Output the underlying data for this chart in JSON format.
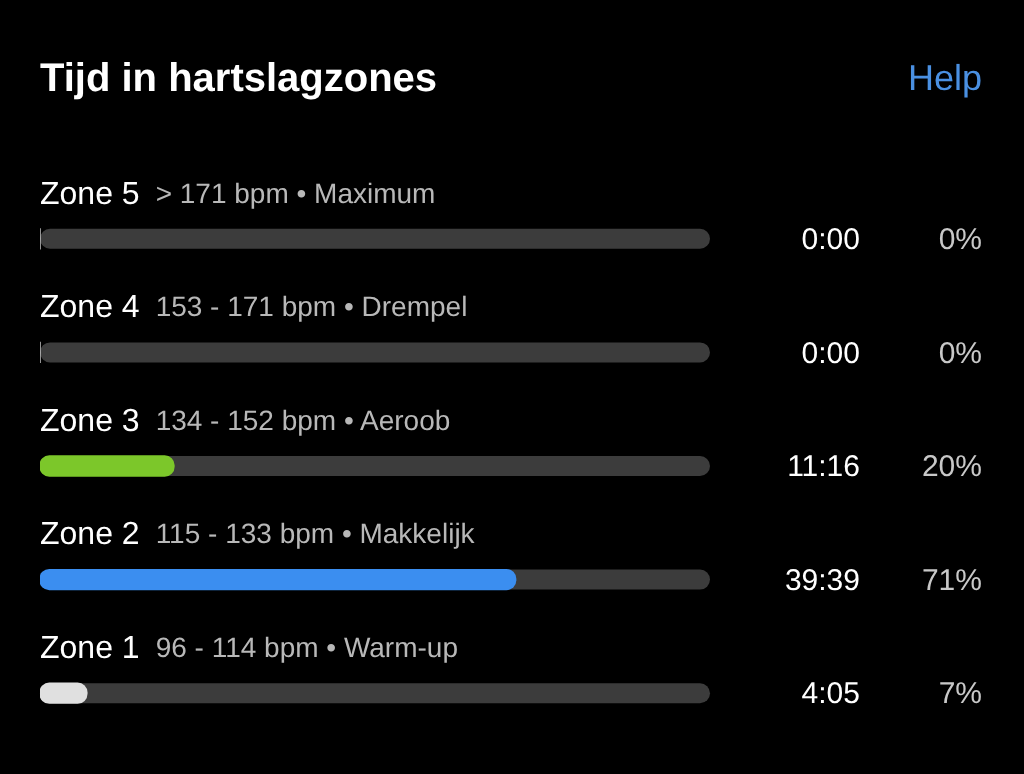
{
  "chart_data": {
    "type": "bar",
    "orientation": "horizontal",
    "title": "Tijd in hartslagzones",
    "categories": [
      "Zone 5",
      "Zone 4",
      "Zone 3",
      "Zone 2",
      "Zone 1"
    ],
    "values": [
      0,
      0,
      20,
      71,
      7
    ],
    "colors": [
      "#e0e0e0",
      "#e0e0e0",
      "#7cc72a",
      "#3b8ef0",
      "#e0e0e0"
    ],
    "value_labels": [
      "0%",
      "0%",
      "20%",
      "71%",
      "7%"
    ],
    "xlim": [
      0,
      100
    ],
    "tick_labels": false,
    "legend": false,
    "annotations": [
      "Help",
      "> 171 bpm • Maximum",
      "153 - 171 bpm • Drempel",
      "134 - 152 bpm • Aeroob",
      "115 - 133 bpm • Makkelijk",
      "96 - 114 bpm • Warm-up",
      "0:00",
      "0:00",
      "11:16",
      "39:39",
      "4:05"
    ]
  }
}
